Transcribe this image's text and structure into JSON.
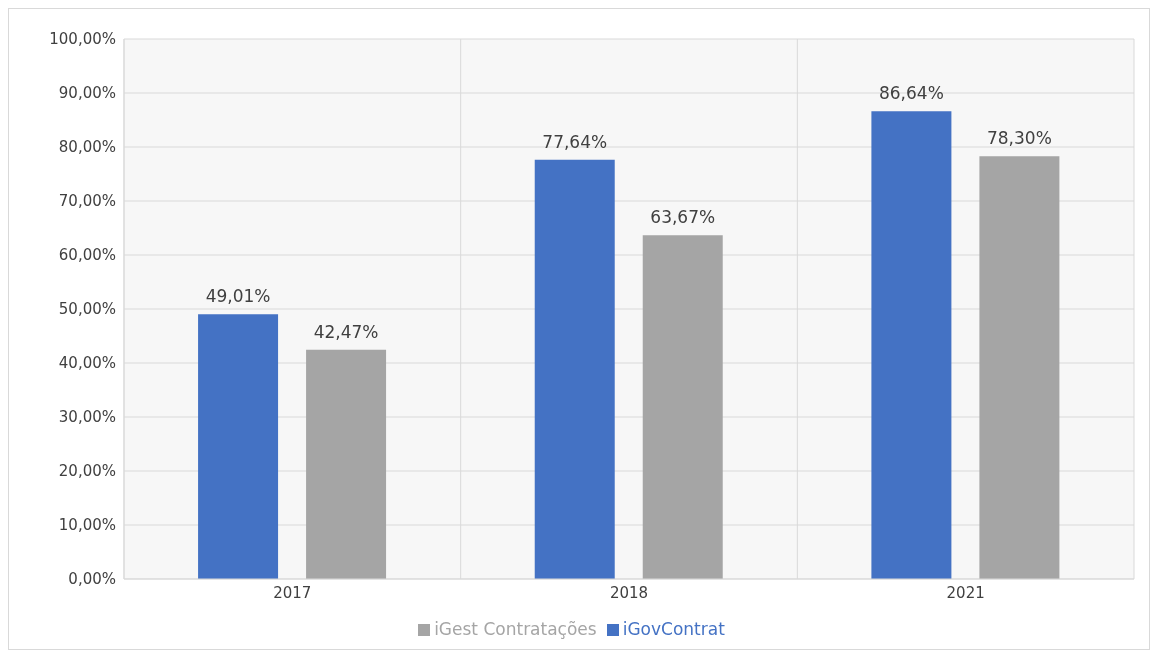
{
  "chart_data": {
    "type": "bar",
    "categories": [
      "2017",
      "2018",
      "2021"
    ],
    "series": [
      {
        "name": "iGovContrat",
        "color": "#4472c4",
        "values": [
          49.01,
          77.64,
          86.64
        ],
        "value_labels": [
          "49,01%",
          "77,64%",
          "86,64%"
        ]
      },
      {
        "name": "iGest Contratações",
        "color": "#a5a5a5",
        "values": [
          42.47,
          63.67,
          78.3
        ],
        "value_labels": [
          "42,47%",
          "63,67%",
          "78,30%"
        ]
      }
    ],
    "ylim": [
      0,
      100
    ],
    "yticks": [
      {
        "value": 0,
        "label": "0,00%"
      },
      {
        "value": 10,
        "label": "10,00%"
      },
      {
        "value": 20,
        "label": "20,00%"
      },
      {
        "value": 30,
        "label": "30,00%"
      },
      {
        "value": 40,
        "label": "40,00%"
      },
      {
        "value": 50,
        "label": "50,00%"
      },
      {
        "value": 60,
        "label": "60,00%"
      },
      {
        "value": 70,
        "label": "70,00%"
      },
      {
        "value": 80,
        "label": "80,00%"
      },
      {
        "value": 90,
        "label": "90,00%"
      },
      {
        "value": 100,
        "label": "100,00%"
      }
    ],
    "grid": true,
    "legend": "bottom"
  }
}
